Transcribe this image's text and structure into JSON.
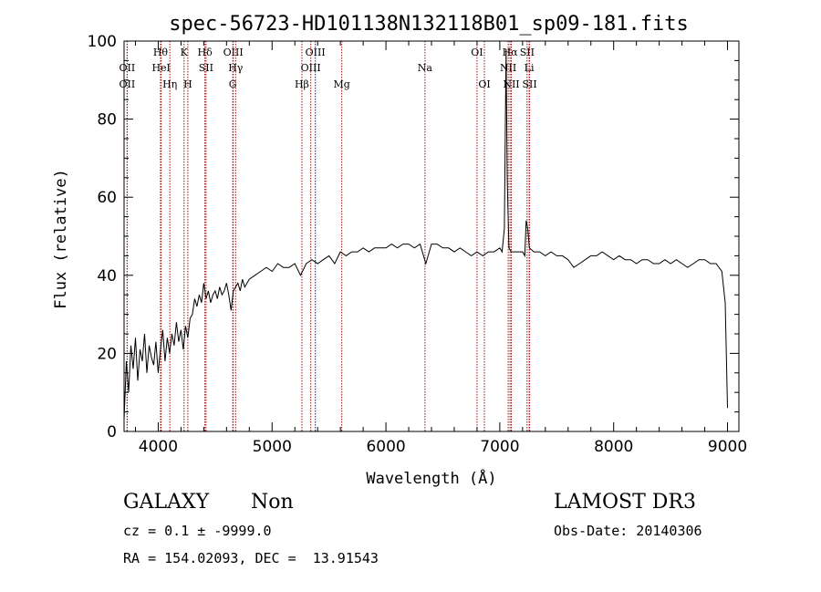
{
  "chart_data": {
    "type": "line",
    "title": "spec-56723-HD101138N132118B01_sp09-181.fits",
    "xlabel": "Wavelength (Å)",
    "ylabel": "Flux (relative)",
    "xlim": [
      3700,
      9100
    ],
    "ylim": [
      0,
      100
    ],
    "xticks": [
      4000,
      5000,
      6000,
      7000,
      8000,
      9000
    ],
    "yticks": [
      0,
      20,
      40,
      60,
      80,
      100
    ],
    "grid": false,
    "series": [
      {
        "x": [
          3700,
          3720,
          3740,
          3760,
          3780,
          3800,
          3820,
          3840,
          3860,
          3880,
          3900,
          3920,
          3940,
          3960,
          3980,
          4000,
          4020,
          4040,
          4060,
          4080,
          4100,
          4120,
          4140,
          4160,
          4180,
          4200,
          4220,
          4240,
          4260,
          4280,
          4300,
          4320,
          4340,
          4360,
          4380,
          4400,
          4420,
          4440,
          4460,
          4480,
          4500,
          4520,
          4540,
          4560,
          4580,
          4600,
          4620,
          4640,
          4660,
          4680,
          4700,
          4720,
          4740,
          4760,
          4780,
          4800,
          4850,
          4900,
          4950,
          5000,
          5050,
          5100,
          5150,
          5200,
          5250,
          5300,
          5350,
          5400,
          5450,
          5500,
          5550,
          5600,
          5650,
          5700,
          5750,
          5800,
          5850,
          5900,
          5950,
          6000,
          6050,
          6100,
          6150,
          6200,
          6250,
          6300,
          6350,
          6400,
          6450,
          6500,
          6550,
          6600,
          6650,
          6700,
          6750,
          6800,
          6850,
          6900,
          6950,
          7000,
          7020,
          7040,
          7055,
          7065,
          7080,
          7100,
          7150,
          7200,
          7220,
          7232,
          7245,
          7260,
          7300,
          7350,
          7400,
          7450,
          7500,
          7550,
          7600,
          7650,
          7700,
          7750,
          7800,
          7850,
          7900,
          7950,
          8000,
          8050,
          8100,
          8150,
          8200,
          8250,
          8300,
          8350,
          8400,
          8450,
          8500,
          8550,
          8600,
          8650,
          8700,
          8750,
          8800,
          8850,
          8900,
          8950,
          8980,
          9000
        ],
        "y": [
          3,
          18,
          10,
          22,
          16,
          24,
          13,
          21,
          18,
          25,
          15,
          22,
          19,
          17,
          23,
          15,
          21,
          26,
          18,
          24,
          20,
          25,
          22,
          28,
          23,
          26,
          21,
          27,
          24,
          29,
          30,
          34,
          32,
          35,
          33,
          38,
          34,
          36,
          33,
          35,
          36,
          34,
          37,
          35,
          36,
          38,
          35,
          31,
          36,
          37,
          38,
          36,
          39,
          37,
          38,
          39,
          40,
          41,
          42,
          41,
          43,
          42,
          42,
          43,
          40,
          43,
          44,
          43,
          44,
          45,
          43,
          46,
          45,
          46,
          46,
          47,
          46,
          47,
          47,
          47,
          48,
          47,
          48,
          48,
          47,
          48,
          43,
          48,
          48,
          47,
          47,
          46,
          47,
          46,
          45,
          46,
          45,
          46,
          46,
          47,
          46,
          52,
          98,
          65,
          47,
          46,
          46,
          46,
          45,
          54,
          52,
          47,
          46,
          46,
          45,
          46,
          45,
          45,
          44,
          42,
          43,
          44,
          45,
          45,
          46,
          45,
          44,
          45,
          44,
          44,
          43,
          44,
          44,
          43,
          43,
          44,
          43,
          44,
          43,
          42,
          43,
          44,
          44,
          43,
          43,
          41,
          33,
          6
        ]
      }
    ],
    "lines": [
      {
        "x": 3727,
        "label": "OII",
        "row": 2,
        "color": "#a01010"
      },
      {
        "x": 3727,
        "label": "OII",
        "row": 3,
        "color": "#a01010"
      },
      {
        "x": 4020,
        "label": "Hθ",
        "row": 1,
        "color": "#a01010"
      },
      {
        "x": 4026,
        "label": "HeI",
        "row": 2,
        "color": "#a01010"
      },
      {
        "x": 4102,
        "label": "Hη",
        "row": 3,
        "color": "#a01010"
      },
      {
        "x": 4227,
        "label": "K",
        "row": 1,
        "color": "#a01010"
      },
      {
        "x": 4260,
        "label": "H",
        "row": 3,
        "color": "#a01010"
      },
      {
        "x": 4410,
        "label": "Hδ",
        "row": 1,
        "color": "#a01010"
      },
      {
        "x": 4420,
        "label": "SII",
        "row": 2,
        "color": "#a01010"
      },
      {
        "x": 4659,
        "label": "OIII",
        "row": 1,
        "color": "#a01010"
      },
      {
        "x": 4680,
        "label": "Hγ",
        "row": 2,
        "color": "#a01010"
      },
      {
        "x": 4655,
        "label": "G",
        "row": 3,
        "color": "#a01010"
      },
      {
        "x": 5262,
        "label": "Hβ",
        "row": 3,
        "color": "#a01010"
      },
      {
        "x": 5380,
        "label": "OIII",
        "row": 1,
        "color": "#1010a0"
      },
      {
        "x": 5340,
        "label": "OIII",
        "row": 2,
        "color": "#a01010"
      },
      {
        "x": 5612,
        "label": "Mg",
        "row": 3,
        "color": "#a01010"
      },
      {
        "x": 6343,
        "label": "Na",
        "row": 2,
        "color": "#a01010"
      },
      {
        "x": 6800,
        "label": "OI",
        "row": 1,
        "color": "#a01010"
      },
      {
        "x": 6865,
        "label": "OI",
        "row": 3,
        "color": "#a01010"
      },
      {
        "x": 7090,
        "label": "Hα",
        "row": 1,
        "color": "#a01010"
      },
      {
        "x": 7074,
        "label": "NII",
        "row": 2,
        "color": "#a01010"
      },
      {
        "x": 7101,
        "label": "NII",
        "row": 3,
        "color": "#a01010"
      },
      {
        "x": 7240,
        "label": "SII",
        "row": 1,
        "color": "#a01010"
      },
      {
        "x": 7258,
        "label": "Li",
        "row": 2,
        "color": "#a01010"
      },
      {
        "x": 7262,
        "label": "SII",
        "row": 3,
        "color": "#a01010"
      }
    ]
  },
  "info": {
    "class": "GALAXY",
    "subclass": "Non",
    "cz": "cz = 0.1 ± -9999.0",
    "radec": "RA = 154.02093, DEC =  13.91543",
    "survey": "LAMOST DR3",
    "obsdate": "Obs-Date: 20140306"
  }
}
